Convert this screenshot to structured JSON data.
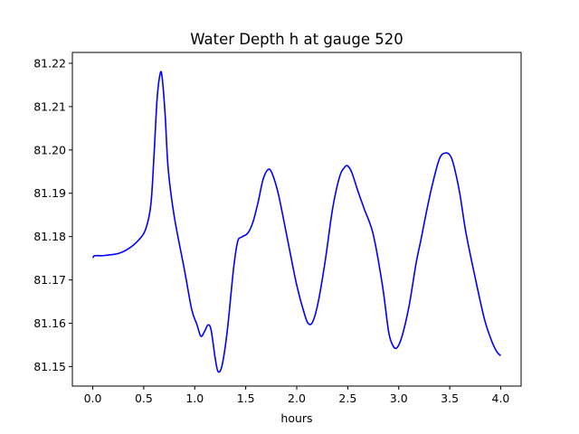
{
  "chart_data": {
    "type": "line",
    "title": "Water Depth h at gauge 520",
    "xlabel": "hours",
    "ylabel": "",
    "xlim": [
      -0.2,
      4.2
    ],
    "ylim": [
      81.1455,
      81.2225
    ],
    "xticks": [
      "0.0",
      "0.5",
      "1.0",
      "1.5",
      "2.0",
      "2.5",
      "3.0",
      "3.5",
      "4.0"
    ],
    "yticks": [
      "81.15",
      "81.16",
      "81.17",
      "81.18",
      "81.19",
      "81.20",
      "81.21",
      "81.22"
    ],
    "grid": false,
    "series": [
      {
        "color": "#0000ff",
        "x": [
          0.0,
          0.02,
          0.1,
          0.25,
          0.35,
          0.45,
          0.52,
          0.57,
          0.6,
          0.63,
          0.66,
          0.68,
          0.71,
          0.74,
          0.8,
          0.9,
          0.97,
          1.02,
          1.06,
          1.1,
          1.13,
          1.16,
          1.2,
          1.23,
          1.27,
          1.32,
          1.38,
          1.42,
          1.46,
          1.52,
          1.57,
          1.62,
          1.67,
          1.72,
          1.76,
          1.82,
          1.9,
          2.0,
          2.08,
          2.12,
          2.16,
          2.21,
          2.28,
          2.35,
          2.42,
          2.47,
          2.5,
          2.54,
          2.6,
          2.66,
          2.75,
          2.84,
          2.9,
          2.94,
          2.98,
          3.03,
          3.1,
          3.17,
          3.22,
          3.27,
          3.33,
          3.4,
          3.46,
          3.51,
          3.55,
          3.6,
          3.66,
          3.75,
          3.84,
          3.91,
          3.96,
          4.0
        ],
        "y": [
          81.1751,
          81.1756,
          81.1756,
          81.1761,
          81.1772,
          81.1792,
          81.1818,
          81.1875,
          81.1985,
          81.2115,
          81.2175,
          81.2168,
          81.208,
          81.1955,
          81.1845,
          81.1722,
          81.1632,
          81.1598,
          81.157,
          81.1583,
          81.1596,
          81.1585,
          81.152,
          81.1488,
          81.1505,
          81.1585,
          81.1725,
          81.1788,
          81.1799,
          81.1808,
          81.1833,
          81.1878,
          81.1932,
          81.1955,
          81.1945,
          81.1898,
          81.1805,
          81.1688,
          81.1618,
          81.1598,
          81.1605,
          81.1648,
          81.1745,
          81.1862,
          81.1938,
          81.196,
          81.1963,
          81.1948,
          81.1905,
          81.1865,
          81.1805,
          81.1688,
          81.1582,
          81.155,
          81.1543,
          81.1568,
          81.1638,
          81.1738,
          81.1795,
          81.1855,
          81.192,
          81.198,
          81.1993,
          81.1985,
          81.1955,
          81.1898,
          81.1808,
          81.1705,
          81.161,
          81.156,
          81.1535,
          81.1525
        ]
      }
    ]
  }
}
